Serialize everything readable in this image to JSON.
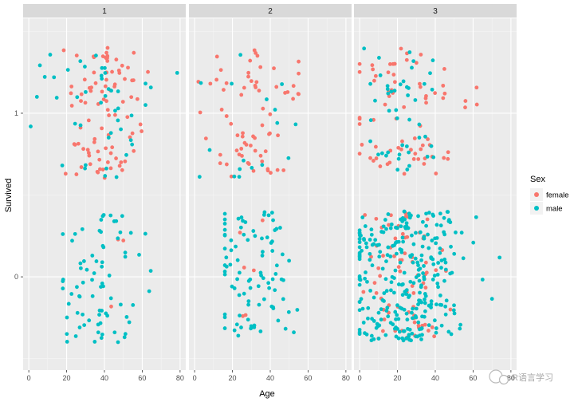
{
  "chart_data": {
    "type": "scatter",
    "facet_by": "Pclass",
    "panels": [
      "1",
      "2",
      "3"
    ],
    "xlabel": "Age",
    "ylabel": "Survived",
    "x_ticks": [
      0,
      20,
      40,
      60,
      80
    ],
    "y_ticks": [
      0,
      1
    ],
    "xlim": [
      -3,
      83
    ],
    "ylim": [
      -0.57,
      1.58
    ],
    "jitter": "vertical, approx ±0.4 around 0 and 1",
    "legend": {
      "title": "Sex",
      "entries": [
        {
          "label": "female",
          "color": "#F8766D"
        },
        {
          "label": "male",
          "color": "#00BFC4"
        }
      ]
    },
    "groups": [
      {
        "panel": "1",
        "survived": 1,
        "sex": "female",
        "count": 91,
        "age_range": [
          14,
          63
        ]
      },
      {
        "panel": "1",
        "survived": 1,
        "sex": "male",
        "count": 45,
        "age_range": [
          1,
          80
        ]
      },
      {
        "panel": "1",
        "survived": 0,
        "sex": "female",
        "count": 3,
        "age_range": [
          2,
          50
        ]
      },
      {
        "panel": "1",
        "survived": 0,
        "sex": "male",
        "count": 77,
        "age_range": [
          18,
          71
        ]
      },
      {
        "panel": "2",
        "survived": 1,
        "sex": "female",
        "count": 70,
        "age_range": [
          2,
          55
        ]
      },
      {
        "panel": "2",
        "survived": 1,
        "sex": "male",
        "count": 17,
        "age_range": [
          0,
          62
        ]
      },
      {
        "panel": "2",
        "survived": 0,
        "sex": "female",
        "count": 6,
        "age_range": [
          24,
          57
        ]
      },
      {
        "panel": "2",
        "survived": 0,
        "sex": "male",
        "count": 91,
        "age_range": [
          16,
          70
        ]
      },
      {
        "panel": "3",
        "survived": 1,
        "sex": "female",
        "count": 72,
        "age_range": [
          0,
          63
        ]
      },
      {
        "panel": "3",
        "survived": 1,
        "sex": "male",
        "count": 47,
        "age_range": [
          1,
          45
        ]
      },
      {
        "panel": "3",
        "survived": 0,
        "sex": "female",
        "count": 72,
        "age_range": [
          2,
          48
        ]
      },
      {
        "panel": "3",
        "survived": 0,
        "sex": "male",
        "count": 300,
        "age_range": [
          0,
          74
        ]
      }
    ],
    "extra_points": [
      {
        "panel": "3",
        "survived": 1,
        "sex": "female",
        "age": 62
      },
      {
        "panel": "3",
        "survived": 0,
        "sex": "male",
        "age": 65
      },
      {
        "panel": "3",
        "survived": 0,
        "sex": "male",
        "age": 70
      },
      {
        "panel": "3",
        "survived": 0,
        "sex": "male",
        "age": 74
      }
    ]
  },
  "watermark": {
    "text": "R语言学习"
  }
}
